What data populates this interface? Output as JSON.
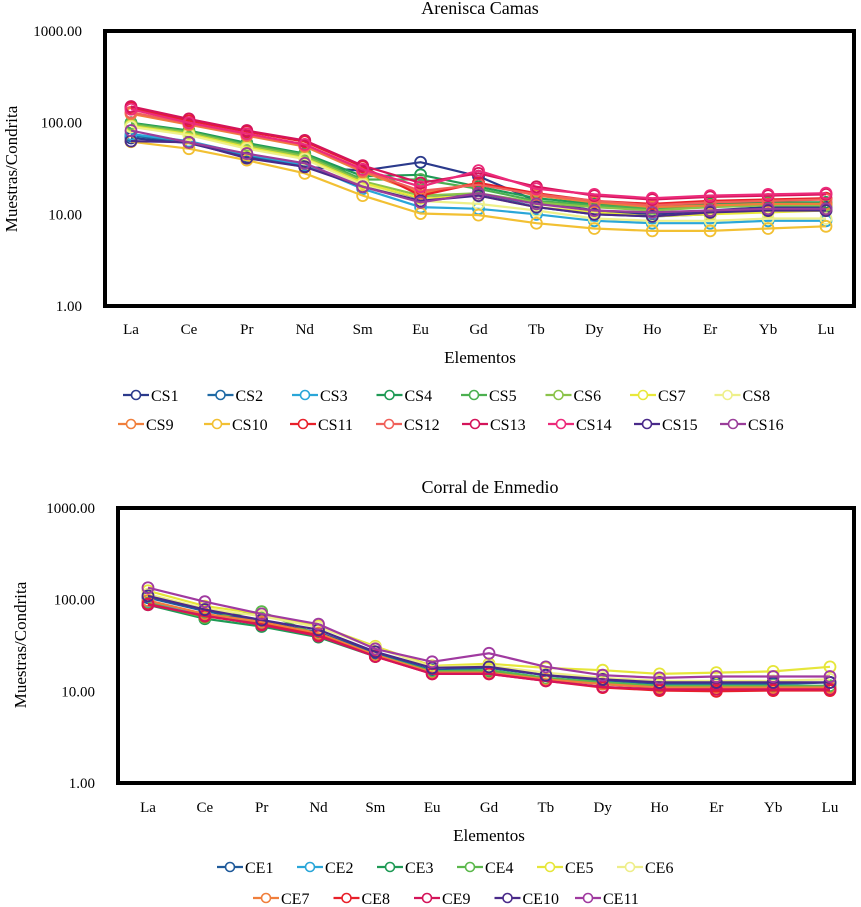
{
  "chart_data": [
    {
      "type": "line",
      "title": "Arenisca Camas",
      "xlabel": "Elementos",
      "ylabel": "Muestras/Condrita",
      "yscale": "log",
      "ylim": [
        1,
        1000
      ],
      "yticks": [
        "1000.00",
        "100.00",
        "10.00",
        "1.00"
      ],
      "ytick_values": [
        1000,
        100,
        10,
        1
      ],
      "grid": false,
      "legend_position": "bottom",
      "categories": [
        "La",
        "Ce",
        "Pr",
        "Nd",
        "Sm",
        "Eu",
        "Gd",
        "Tb",
        "Dy",
        "Ho",
        "Er",
        "Yb",
        "Lu"
      ],
      "series": [
        {
          "name": "CS1",
          "color": "#2b3a8c",
          "values": [
            68,
            60,
            42,
            33,
            30,
            37,
            26,
            14,
            11,
            10,
            11,
            12,
            12
          ]
        },
        {
          "name": "CS2",
          "color": "#1f6aa5",
          "values": [
            72,
            62,
            44,
            34,
            20,
            15,
            17,
            12,
            10,
            9.5,
            10,
            11,
            11
          ]
        },
        {
          "name": "CS3",
          "color": "#2aa6d8",
          "values": [
            75,
            63,
            45,
            35,
            19,
            12,
            11.5,
            10,
            8.5,
            8,
            8,
            8.5,
            8.5
          ]
        },
        {
          "name": "CS4",
          "color": "#1f9a55",
          "values": [
            100,
            82,
            60,
            46,
            26,
            27,
            20,
            15,
            13,
            12,
            13,
            13.5,
            13.5
          ]
        },
        {
          "name": "CS5",
          "color": "#4cb050",
          "values": [
            98,
            80,
            58,
            45,
            24,
            24,
            19,
            14,
            12.5,
            11.5,
            12.5,
            13,
            13
          ]
        },
        {
          "name": "CS6",
          "color": "#8bc34a",
          "values": [
            95,
            78,
            56,
            43,
            23,
            16,
            17,
            13.5,
            12,
            11,
            12,
            12.5,
            12.5
          ]
        },
        {
          "name": "CS7",
          "color": "#e8e83a",
          "values": [
            92,
            75,
            54,
            41,
            22,
            15,
            16,
            12,
            10.5,
            9.5,
            10,
            10.5,
            11
          ]
        },
        {
          "name": "CS8",
          "color": "#eef08a",
          "values": [
            90,
            73,
            52,
            40,
            21,
            14,
            13,
            11,
            9,
            8.5,
            8.5,
            9,
            9
          ]
        },
        {
          "name": "CS9",
          "color": "#f07f3c",
          "values": [
            125,
            95,
            72,
            55,
            29,
            17,
            22,
            16,
            13.5,
            12,
            12.5,
            13,
            13
          ]
        },
        {
          "name": "CS10",
          "color": "#f2c033",
          "values": [
            62,
            52,
            39,
            28,
            16,
            10.2,
            9.8,
            8,
            7,
            6.6,
            6.6,
            7,
            7.4
          ]
        },
        {
          "name": "CS11",
          "color": "#e8202a",
          "values": [
            145,
            105,
            80,
            62,
            33,
            16,
            22,
            17,
            14,
            13,
            14,
            14.5,
            15
          ]
        },
        {
          "name": "CS12",
          "color": "#f0605a",
          "values": [
            130,
            98,
            74,
            57,
            30,
            18,
            21,
            16.5,
            14,
            12.5,
            13.5,
            14,
            14.5
          ]
        },
        {
          "name": "CS13",
          "color": "#d4145a",
          "values": [
            150,
            110,
            82,
            64,
            34,
            22,
            28,
            20,
            16,
            14.5,
            15.5,
            16,
            16.5
          ]
        },
        {
          "name": "CS14",
          "color": "#ec2a7a",
          "values": [
            140,
            100,
            76,
            58,
            31,
            20,
            30,
            19,
            16.5,
            15,
            16,
            16.5,
            17
          ]
        },
        {
          "name": "CS15",
          "color": "#4a2a8a",
          "values": [
            63,
            61,
            41,
            33,
            20,
            14,
            16,
            12,
            10,
            9.5,
            10.5,
            11,
            11
          ]
        },
        {
          "name": "CS16",
          "color": "#9a3d9a",
          "values": [
            82,
            61,
            46,
            36,
            20,
            13.5,
            17,
            13,
            11,
            10.5,
            11,
            11.5,
            11.5
          ]
        }
      ]
    },
    {
      "type": "line",
      "title": "Corral de Enmedio",
      "xlabel": "Elementos",
      "ylabel": "Muestras/Condrita",
      "yscale": "log",
      "ylim": [
        1,
        1000
      ],
      "yticks": [
        "1000.00",
        "100.00",
        "10.00",
        "1.00"
      ],
      "ytick_values": [
        1000,
        100,
        10,
        1
      ],
      "grid": false,
      "legend_position": "bottom",
      "categories": [
        "La",
        "Ce",
        "Pr",
        "Nd",
        "Sm",
        "Eu",
        "Gd",
        "Tb",
        "Dy",
        "Ho",
        "Er",
        "Yb",
        "Lu"
      ],
      "series": [
        {
          "name": "CE1",
          "color": "#1f5a9a",
          "values": [
            105,
            75,
            58,
            44,
            26,
            17,
            18,
            15,
            13,
            12,
            12,
            12,
            12.5
          ]
        },
        {
          "name": "CE2",
          "color": "#2aa6d8",
          "values": [
            95,
            68,
            55,
            42,
            25,
            16.5,
            17,
            14,
            12.5,
            11.5,
            11.5,
            11.5,
            11.5
          ]
        },
        {
          "name": "CE3",
          "color": "#1f9a55",
          "values": [
            88,
            62,
            51,
            39,
            24,
            16,
            16.5,
            13.5,
            12,
            11,
            11,
            11,
            11
          ]
        },
        {
          "name": "CE4",
          "color": "#5cb84c",
          "values": [
            92,
            64,
            74,
            41,
            25,
            16.5,
            17,
            14,
            12.5,
            11.5,
            11.5,
            11.5,
            11.5
          ]
        },
        {
          "name": "CE5",
          "color": "#e6e63a",
          "values": [
            125,
            85,
            70,
            52,
            31,
            19,
            20,
            18,
            17,
            15.5,
            16,
            16.5,
            18.5
          ]
        },
        {
          "name": "CE6",
          "color": "#eeee8a",
          "values": [
            115,
            80,
            66,
            50,
            30,
            18.5,
            19,
            16,
            14,
            13,
            13,
            13,
            13.5
          ]
        },
        {
          "name": "CE7",
          "color": "#f07f3c",
          "values": [
            98,
            70,
            57,
            43,
            25,
            16,
            16,
            13.5,
            12,
            11,
            11,
            11,
            11
          ]
        },
        {
          "name": "CE8",
          "color": "#e8202a",
          "values": [
            90,
            66,
            54,
            41,
            24,
            15.5,
            15.5,
            13,
            11,
            10.2,
            10,
            10.2,
            10.2
          ]
        },
        {
          "name": "CE9",
          "color": "#d4145a",
          "values": [
            88,
            67,
            53,
            40,
            24,
            15.5,
            15.5,
            13,
            11.2,
            10.5,
            10.5,
            10.5,
            10.5
          ]
        },
        {
          "name": "CE10",
          "color": "#4a2a8a",
          "values": [
            110,
            78,
            60,
            47,
            27,
            18,
            18.5,
            15,
            13.5,
            12.5,
            12.5,
            12.5,
            12.5
          ]
        },
        {
          "name": "CE11",
          "color": "#a03aa0",
          "values": [
            135,
            95,
            70,
            54,
            29,
            21,
            26,
            18.5,
            15,
            14,
            14.5,
            14.5,
            14.5
          ]
        }
      ]
    }
  ]
}
